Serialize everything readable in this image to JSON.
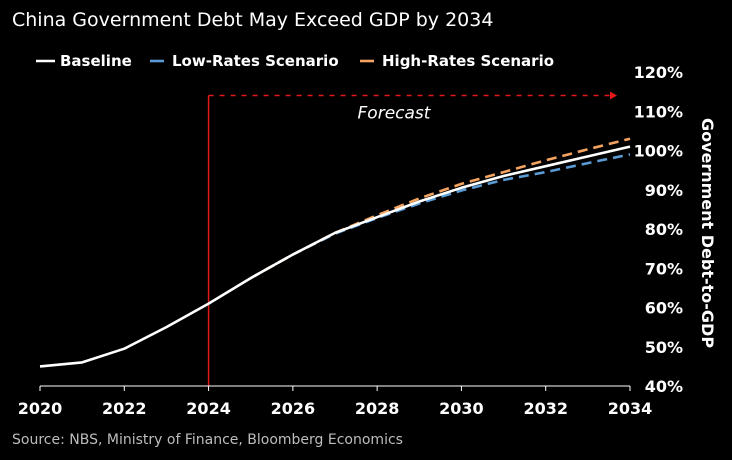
{
  "chart_data": {
    "type": "line",
    "title": "China Government Debt May Exceed GDP by 2034",
    "ylabel": "Government Debt-to-GDP",
    "xlabel": "",
    "xlim": [
      2020,
      2034
    ],
    "ylim": [
      40,
      120
    ],
    "x_ticks": [
      "2020",
      "2022",
      "2024",
      "2026",
      "2028",
      "2030",
      "2032",
      "2034"
    ],
    "y_ticks": [
      "40%",
      "50%",
      "60%",
      "70%",
      "80%",
      "90%",
      "100%",
      "110%",
      "120%"
    ],
    "y_axis_position": "right",
    "legend_position": "top-left",
    "grid": false,
    "series": [
      {
        "name": "Baseline",
        "color": "#ffffff",
        "style": "solid",
        "x": [
          2020,
          2021,
          2022,
          2023,
          2024,
          2025,
          2026,
          2027,
          2028,
          2029,
          2030,
          2031,
          2032,
          2033,
          2034
        ],
        "values": [
          45,
          46,
          49.5,
          55,
          61,
          67.5,
          73.5,
          79,
          83,
          87,
          90.5,
          93.5,
          96,
          98.5,
          101
        ]
      },
      {
        "name": "Low-Rates Scenario",
        "color": "#5b9bd5",
        "style": "dashed",
        "x": [
          2025,
          2026,
          2027,
          2028,
          2029,
          2030,
          2031,
          2032,
          2033,
          2034
        ],
        "values": [
          67.5,
          73.5,
          78.8,
          82.8,
          86.5,
          89.8,
          92.5,
          94.5,
          96.8,
          99
        ]
      },
      {
        "name": "High-Rates Scenario",
        "color": "#f4a460",
        "style": "dashed",
        "x": [
          2025,
          2026,
          2027,
          2028,
          2029,
          2030,
          2031,
          2032,
          2033,
          2034
        ],
        "values": [
          67.5,
          73.5,
          79,
          83.5,
          87.8,
          91.5,
          94.5,
          97.5,
          100.3,
          103
        ]
      }
    ],
    "annotations": [
      {
        "text": "Forecast",
        "color": "#e31a1c",
        "from_x": 2024,
        "to_x": 2034,
        "level_y": 114
      }
    ],
    "source": "Source: NBS, Ministry of Finance, Bloomberg Economics"
  }
}
